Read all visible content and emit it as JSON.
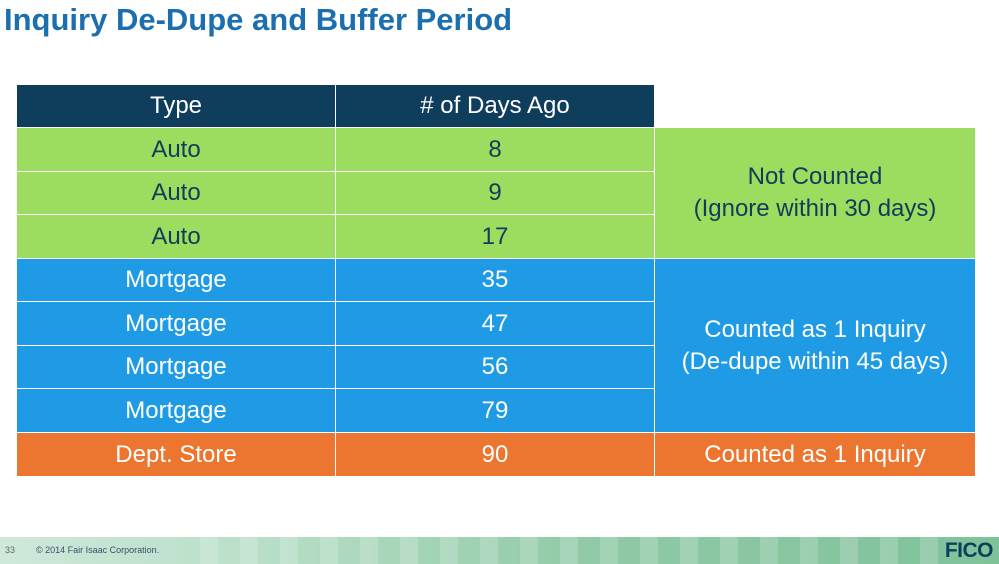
{
  "title": "Inquiry De-Dupe and Buffer Period",
  "table": {
    "headers": [
      "Type",
      "# of Days Ago"
    ],
    "rows": [
      {
        "type": "Auto",
        "days": "8"
      },
      {
        "type": "Auto",
        "days": "9"
      },
      {
        "type": "Auto",
        "days": "17"
      },
      {
        "type": "Mortgage",
        "days": "35"
      },
      {
        "type": "Mortgage",
        "days": "47"
      },
      {
        "type": "Mortgage",
        "days": "56"
      },
      {
        "type": "Mortgage",
        "days": "79"
      },
      {
        "type": "Dept. Store",
        "days": "90"
      }
    ],
    "notes": {
      "auto_line1": "Not Counted",
      "auto_line2": "(Ignore within 30 days)",
      "mortgage_line1": "Counted as 1 Inquiry",
      "mortgage_line2": "(De-dupe within 45 days)",
      "dept": "Counted as 1 Inquiry"
    }
  },
  "colors": {
    "title": "#1b6fae",
    "header_bg": "#0f3e5c",
    "auto_bg": "#9cdc5e",
    "mortgage_bg": "#1f9be5",
    "dept_bg": "#ec7530"
  },
  "footer": {
    "page_number": "33",
    "copyright": "© 2014 Fair Isaac Corporation.",
    "logo": "FICO"
  }
}
